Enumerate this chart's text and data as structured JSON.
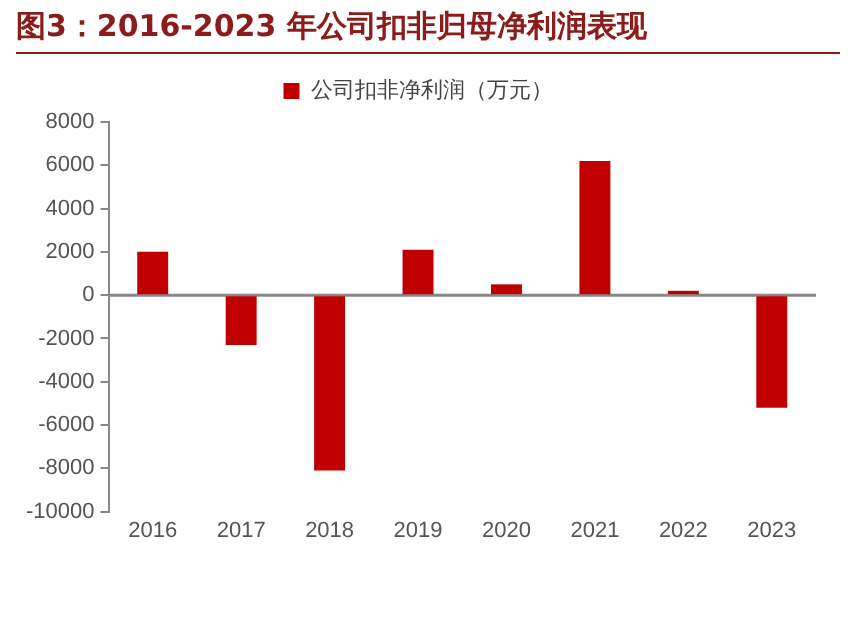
{
  "chart_data": {
    "type": "bar",
    "title": "图3：2016-2023 年公司扣非归母净利润表现",
    "categories": [
      "2016",
      "2017",
      "2018",
      "2019",
      "2020",
      "2021",
      "2022",
      "2023"
    ],
    "series": [
      {
        "name": "公司扣非净利润（万元）",
        "color": "#c00000",
        "values": [
          2000,
          -2300,
          -8100,
          2100,
          500,
          6200,
          200,
          -5200
        ]
      }
    ],
    "ylim": [
      -10000,
      8000
    ],
    "yticks": [
      -10000,
      -8000,
      -6000,
      -4000,
      -2000,
      0,
      2000,
      4000,
      6000,
      8000
    ],
    "ref_lines": [
      {
        "axis": "y",
        "value": 0,
        "color": "#888888"
      }
    ],
    "grid": false,
    "legend": "top"
  }
}
